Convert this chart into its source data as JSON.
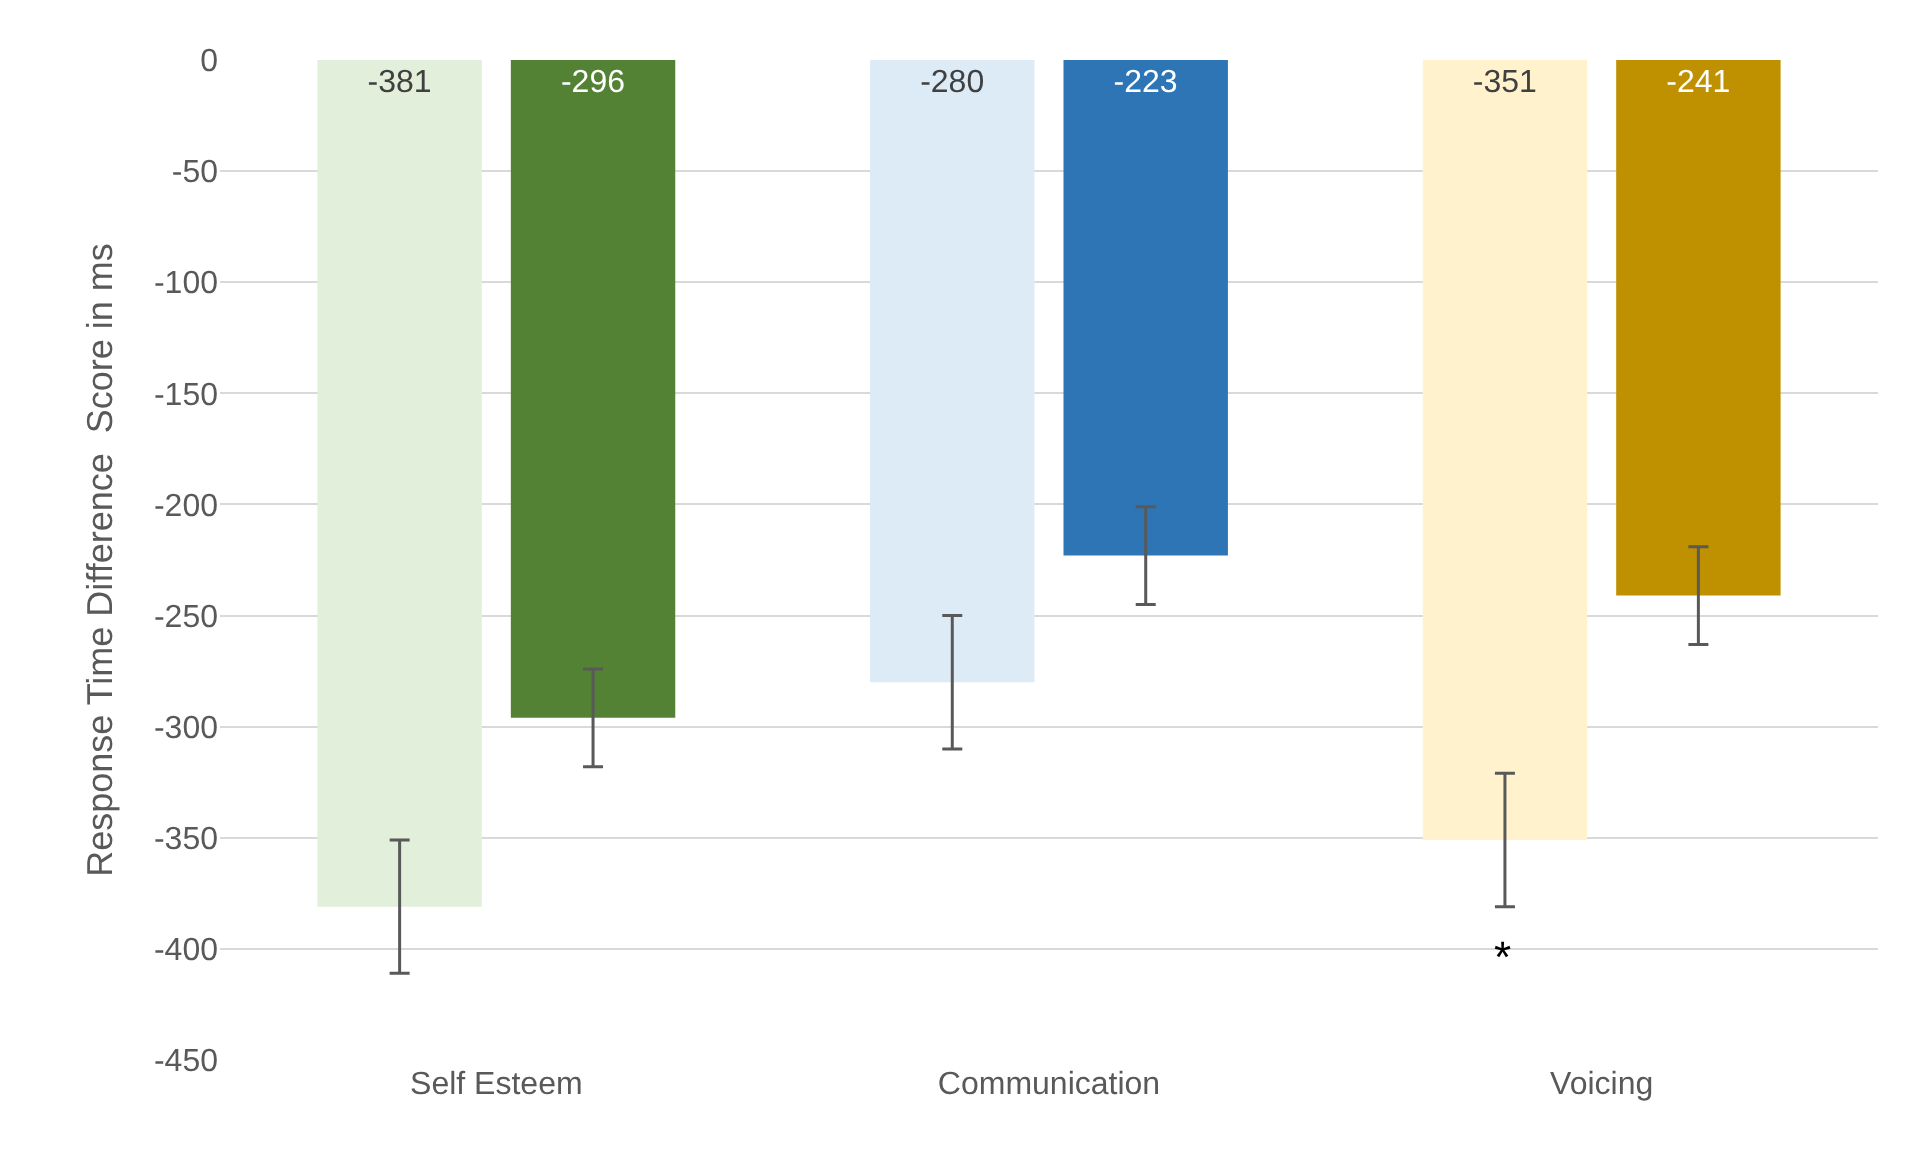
{
  "chart_data": {
    "type": "bar",
    "ylabel": "Response Time Difference  Score in ms",
    "categories": [
      "Self Esteem",
      "Communication",
      "Voicing"
    ],
    "series": [
      {
        "colors": [
          "#e2efda",
          "#ddebf7",
          "#fff2cc"
        ],
        "values": [
          -381,
          -280,
          -351
        ],
        "errors": [
          30,
          30,
          30
        ]
      },
      {
        "colors": [
          "#548235",
          "#2e75b6",
          "#bf9000"
        ],
        "values": [
          -296,
          -223,
          -241
        ],
        "errors": [
          22,
          22,
          22
        ]
      }
    ],
    "ylim": [
      -450,
      0
    ],
    "yticks": [
      -450,
      -400,
      -350,
      -300,
      -250,
      -200,
      -150,
      -100,
      -50,
      0
    ],
    "grid": "y",
    "data_labels": true,
    "annotations": [
      "*"
    ]
  }
}
